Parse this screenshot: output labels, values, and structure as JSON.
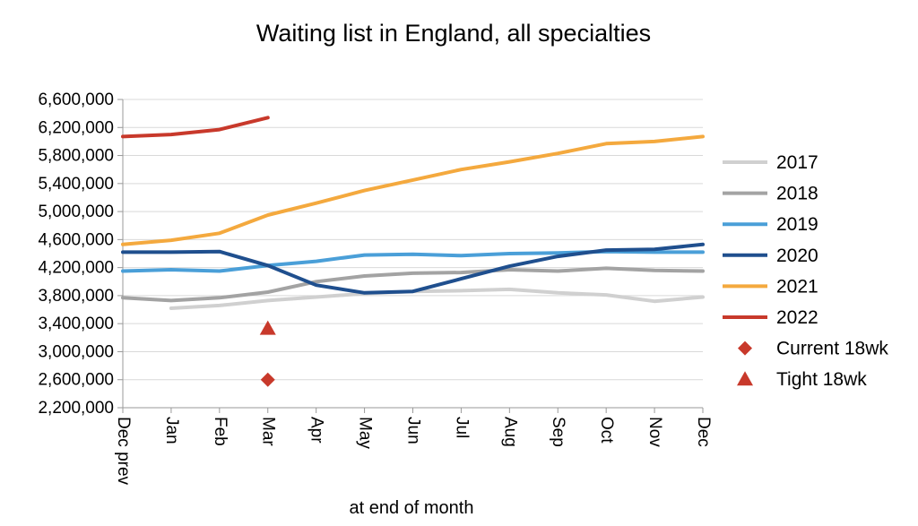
{
  "chart_data": {
    "type": "line",
    "title": "Waiting list in England, all specialties",
    "xlabel": "at end of month",
    "ylabel": "",
    "categories": [
      "Dec prev",
      "Jan",
      "Feb",
      "Mar",
      "Apr",
      "May",
      "Jun",
      "Jul",
      "Aug",
      "Sep",
      "Oct",
      "Nov",
      "Dec"
    ],
    "ylim": [
      2200000,
      6600000
    ],
    "yticks": [
      2200000,
      2600000,
      3000000,
      3400000,
      3800000,
      4200000,
      4600000,
      5000000,
      5400000,
      5800000,
      6200000,
      6600000
    ],
    "ytick_labels": [
      "2,200,000",
      "2,600,000",
      "3,000,000",
      "3,400,000",
      "3,800,000",
      "4,200,000",
      "4,600,000",
      "5,000,000",
      "5,400,000",
      "5,800,000",
      "6,200,000",
      "6,600,000"
    ],
    "grid": true,
    "legend_position": "right",
    "series": [
      {
        "name": "2017",
        "color": "#d0d0d0",
        "values": [
          null,
          3620000,
          3660000,
          3730000,
          3780000,
          3830000,
          3860000,
          3870000,
          3890000,
          3840000,
          3810000,
          3720000,
          3780000
        ]
      },
      {
        "name": "2018",
        "color": "#a3a3a3",
        "values": [
          3770000,
          3730000,
          3770000,
          3850000,
          4000000,
          4080000,
          4120000,
          4130000,
          4170000,
          4150000,
          4190000,
          4160000,
          4150000
        ]
      },
      {
        "name": "2019",
        "color": "#4a9fd8",
        "values": [
          4150000,
          4170000,
          4150000,
          4230000,
          4290000,
          4380000,
          4390000,
          4370000,
          4400000,
          4410000,
          4430000,
          4420000,
          4420000
        ]
      },
      {
        "name": "2020",
        "color": "#1f4f8e",
        "values": [
          4420000,
          4420000,
          4430000,
          4230000,
          3950000,
          3840000,
          3860000,
          4040000,
          4220000,
          4360000,
          4450000,
          4460000,
          4530000
        ]
      },
      {
        "name": "2021",
        "color": "#f4a93e",
        "values": [
          4530000,
          4590000,
          4690000,
          4950000,
          5120000,
          5300000,
          5450000,
          5600000,
          5710000,
          5830000,
          5970000,
          6000000,
          6070000
        ]
      },
      {
        "name": "2022",
        "color": "#c8392b",
        "values": [
          6070000,
          6100000,
          6170000,
          6340000,
          null,
          null,
          null,
          null,
          null,
          null,
          null,
          null,
          null
        ]
      }
    ],
    "markers": [
      {
        "name": "Current 18wk",
        "shape": "diamond",
        "color": "#c8392b",
        "category": "Mar",
        "value": 2600000
      },
      {
        "name": "Tight 18wk",
        "shape": "triangle",
        "color": "#c8392b",
        "category": "Mar",
        "value": 3330000
      }
    ]
  }
}
